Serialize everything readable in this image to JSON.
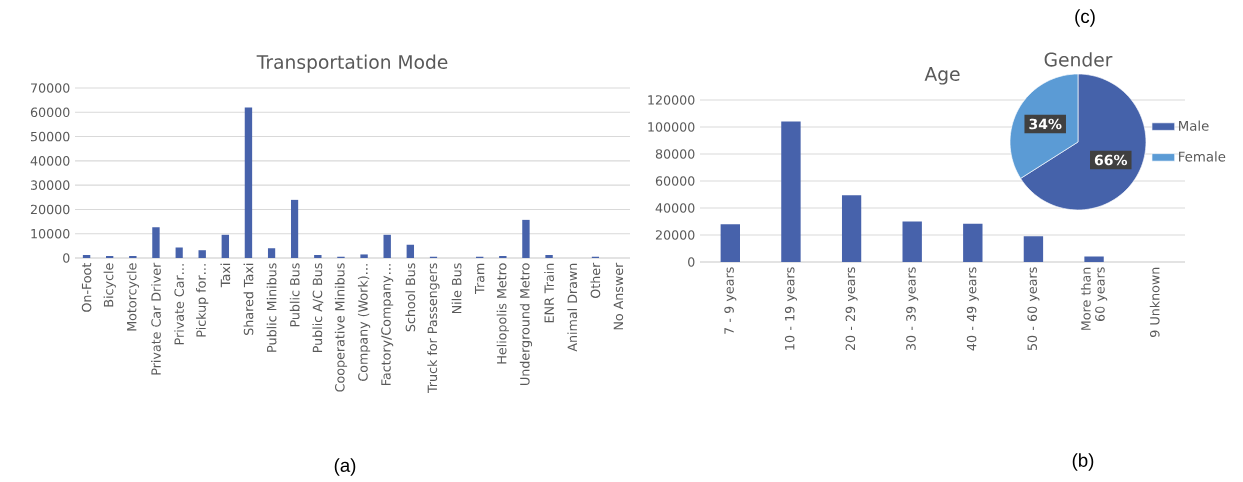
{
  "chart_data": [
    {
      "type": "bar",
      "title": "Transportation Mode",
      "categories": [
        "On-Foot",
        "Bicycle",
        "Motorcycle",
        "Private Car Driver",
        "Private Car…",
        "Pickup for…",
        "Taxi",
        "Shared Taxi",
        "Public Minibus",
        "Public Bus",
        "Public A/C Bus",
        "Cooperative Minibus",
        "Company (Work)…",
        "Factory/Company…",
        "School Bus",
        "Truck for Passengers",
        "Nile Bus",
        "Tram",
        "Heliopolis Metro",
        "Underground Metro",
        "ENR Train",
        "Animal Drawn",
        "Other",
        "No Answer"
      ],
      "values": [
        1200,
        800,
        800,
        12700,
        4300,
        3200,
        9600,
        62000,
        4000,
        24000,
        1200,
        500,
        1500,
        9600,
        5500,
        500,
        0,
        500,
        800,
        15800,
        1200,
        0,
        500,
        0
      ],
      "color": "#4762ab",
      "ylim": [
        0,
        70000
      ],
      "yticks": [
        0,
        10000,
        20000,
        30000,
        40000,
        50000,
        60000,
        70000
      ],
      "grid": "y",
      "legend": false,
      "annotations": [
        "(a)"
      ]
    },
    {
      "type": "bar",
      "title": "Age",
      "categories": [
        "7 - 9 years",
        "10 - 19 years",
        "20 - 29 years",
        "30 - 39 years",
        "40 - 49 years",
        "50 - 60 years",
        "More than 60 years",
        "9 Unknown"
      ],
      "values": [
        28000,
        104000,
        49500,
        30000,
        28500,
        19000,
        4000,
        0
      ],
      "color": "#4762ab",
      "ylim": [
        0,
        120000
      ],
      "yticks": [
        0,
        20000,
        40000,
        60000,
        80000,
        100000,
        120000
      ],
      "grid": "y",
      "legend": false,
      "annotations": [
        "(b)"
      ]
    },
    {
      "type": "pie",
      "title": "Gender",
      "categories": [
        "Male",
        "Female"
      ],
      "values": [
        66,
        34
      ],
      "colors": [
        "#4562aa",
        "#5b9bd5"
      ],
      "value_labels": [
        "66%",
        "34%"
      ],
      "legend": "right",
      "annotations": [
        "(c)"
      ]
    }
  ]
}
